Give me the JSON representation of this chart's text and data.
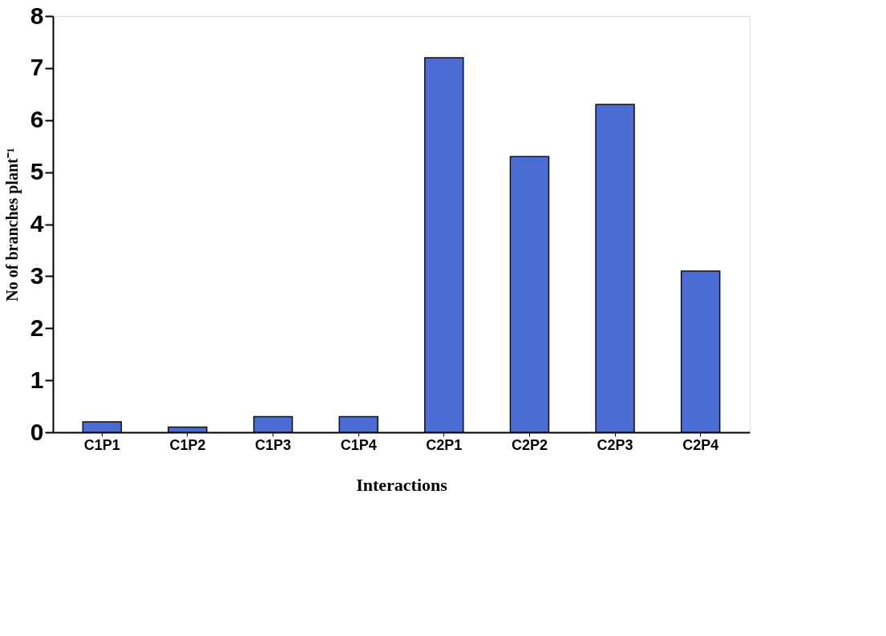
{
  "chart_data": {
    "type": "bar",
    "xlabel": "Interactions",
    "ylabel": "No of branches plant⁻¹",
    "categories": [
      "C1P1",
      "C1P2",
      "C1P3",
      "C1P4",
      "C2P1",
      "C2P2",
      "C2P3",
      "C2P4"
    ],
    "values": [
      0.2,
      0.1,
      0.3,
      0.3,
      7.2,
      5.3,
      6.3,
      3.1
    ],
    "color": "#4a6cd4",
    "ylim": [
      0,
      8
    ],
    "yticks": [
      0,
      1,
      2,
      3,
      4,
      5,
      6,
      7,
      8
    ],
    "grid": false
  }
}
